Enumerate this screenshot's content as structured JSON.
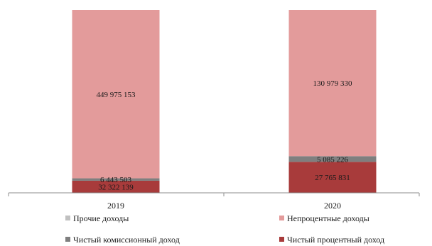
{
  "chart_data": {
    "type": "bar",
    "stacked": true,
    "categories": [
      "2019",
      "2020"
    ],
    "series": [
      {
        "name": "Чистый процентный доход",
        "color": "#a83b3b",
        "values": [
          32322139,
          27765831
        ],
        "labels": [
          "32 322 139",
          "27 765 831"
        ]
      },
      {
        "name": "Чистый комиссионный доход",
        "color": "#7f7f7f",
        "values": [
          6443503,
          5085226
        ],
        "labels": [
          "6 443 503",
          "5 085 226"
        ]
      },
      {
        "name": "Прочие доходы",
        "color": "#c0c0c0",
        "values": [
          0,
          0
        ],
        "labels": [
          "",
          ""
        ]
      },
      {
        "name": "Непроцентные доходы",
        "color": "#e39b9b",
        "values": [
          449975153,
          130979330
        ],
        "labels": [
          "449 975 153",
          "130 979 330"
        ]
      }
    ],
    "legend": {
      "position": "bottom",
      "order": [
        "Прочие доходы",
        "Непроцентные доходы",
        "Чистый комиссионный доход",
        "Чистый процентный доход"
      ]
    },
    "normalized_to_100": true,
    "grid": false
  }
}
